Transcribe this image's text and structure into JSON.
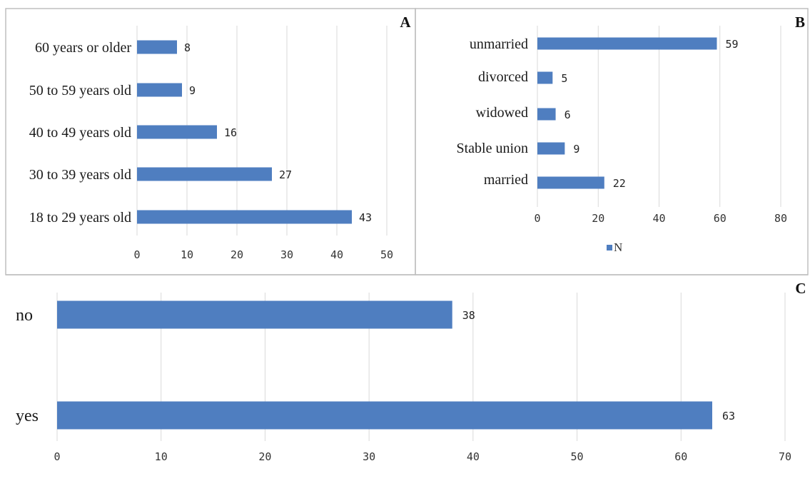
{
  "colors": {
    "bar": "#4f7ec0",
    "grid": "#d9d9d9",
    "frame": "#bfbfbf"
  },
  "chart_data": [
    {
      "type": "bar",
      "orientation": "horizontal",
      "panel_label": "A",
      "categories": [
        "60 years or older",
        "50 to 59 years old",
        "40 to 49 years old",
        "30 to 39 years old",
        "18 to 29 years old"
      ],
      "values": [
        8,
        9,
        16,
        27,
        43
      ],
      "xlim": [
        0,
        50
      ],
      "xticks": [
        "0",
        "10",
        "20",
        "30",
        "40",
        "50"
      ],
      "grid": true
    },
    {
      "type": "bar",
      "orientation": "horizontal",
      "panel_label": "B",
      "categories": [
        "unmarried",
        "divorced",
        "widowed",
        "Stable union",
        "married"
      ],
      "series": [
        {
          "name": "N",
          "values": [
            59,
            5,
            6,
            9,
            22
          ]
        }
      ],
      "xlim": [
        0,
        80
      ],
      "xticks": [
        "0",
        "20",
        "40",
        "60",
        "80"
      ],
      "legend": "bottom",
      "grid": true
    },
    {
      "type": "bar",
      "orientation": "horizontal",
      "panel_label": "C",
      "categories": [
        "no",
        "yes"
      ],
      "values": [
        38,
        63
      ],
      "xlim": [
        0,
        70
      ],
      "xticks": [
        "0",
        "10",
        "20",
        "30",
        "40",
        "50",
        "60",
        "70"
      ],
      "grid": true
    }
  ]
}
